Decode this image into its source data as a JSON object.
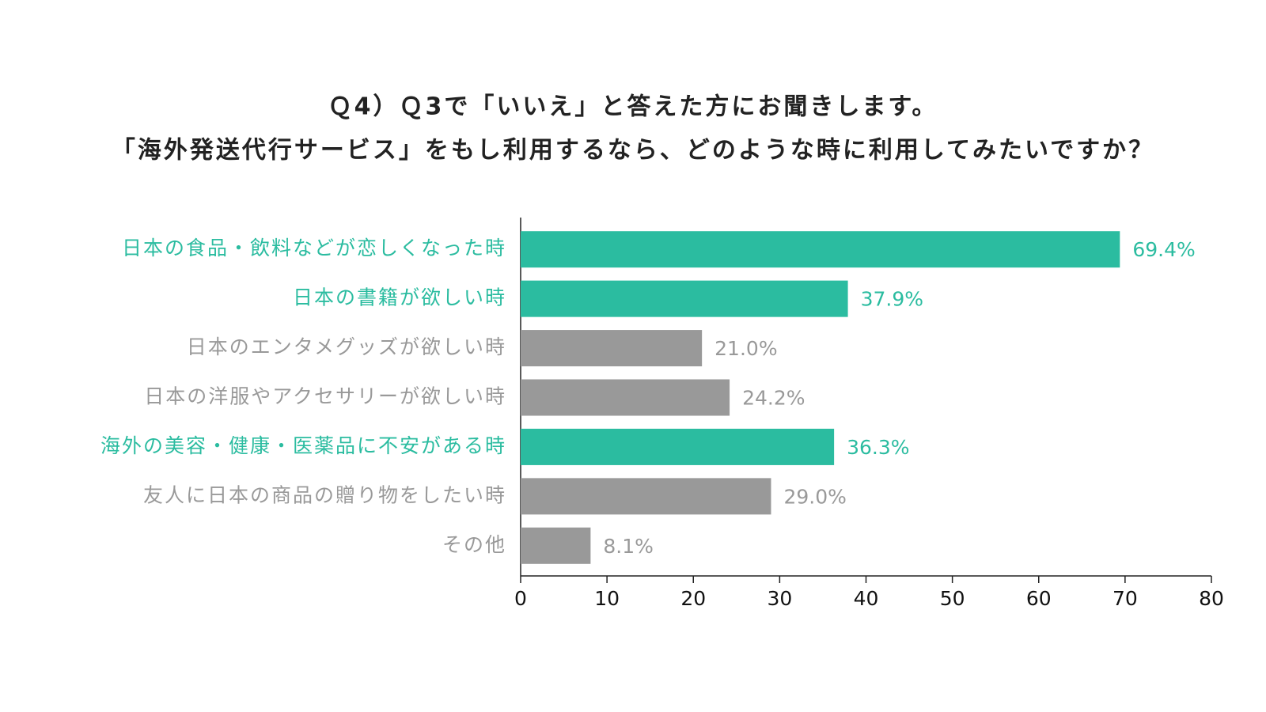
{
  "chart_data": {
    "type": "bar",
    "orientation": "horizontal",
    "title": [
      "Ｑ4）Ｑ3で「いいえ」と答えた方にお聞きします。",
      "「海外発送代行サービス」をもし利用するなら、どのような時に利用してみたいですか？"
    ],
    "categories": [
      "日本の食品・飲料などが恋しくなった時",
      "日本の書籍が欲しい時",
      "日本のエンタメグッズが欲しい時",
      "日本の洋服やアクセサリーが欲しい時",
      "海外の美容・健康・医薬品に不安がある時",
      "友人に日本の商品の贈り物をしたい時",
      "その他"
    ],
    "values": [
      69.4,
      37.9,
      21.0,
      24.2,
      36.3,
      29.0,
      8.1
    ],
    "value_labels": [
      "69.4%",
      "37.9%",
      "21.0%",
      "24.2%",
      "36.3%",
      "29.0%",
      "8.1%"
    ],
    "colors": [
      "#2bbca0",
      "#2bbca0",
      "#999999",
      "#999999",
      "#2bbca0",
      "#999999",
      "#999999"
    ],
    "xlim": [
      0,
      80
    ],
    "xticks": [
      0,
      10,
      20,
      30,
      40,
      50,
      60,
      70,
      80
    ]
  }
}
